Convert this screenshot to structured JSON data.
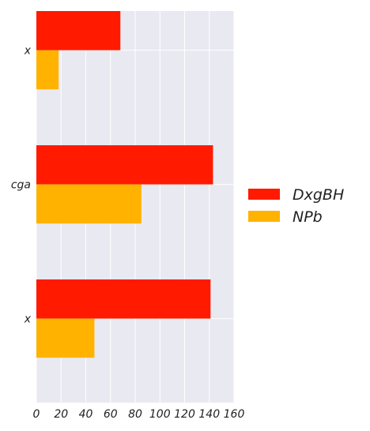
{
  "chart_data": {
    "type": "bar",
    "orientation": "horizontal",
    "categories": [
      "x",
      "cga",
      "x"
    ],
    "series": [
      {
        "name": "DxgBH",
        "color": "#ff1a00",
        "values": [
          68,
          143,
          141
        ]
      },
      {
        "name": "NPb",
        "color": "#ffb300",
        "values": [
          18,
          85,
          47
        ]
      }
    ],
    "xlim": [
      0,
      160
    ],
    "xticks": [
      "0",
      "20",
      "40",
      "60",
      "80",
      "100",
      "120",
      "140",
      "160"
    ],
    "grid": true,
    "legend_position": "right"
  },
  "colors": {
    "plot_background": "#e9e9f1",
    "grid": "#ffffff"
  }
}
